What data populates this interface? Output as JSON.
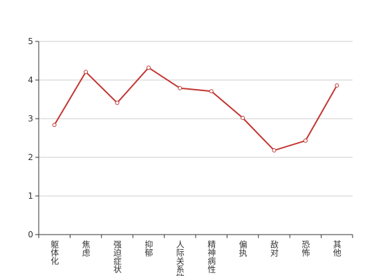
{
  "chart_data": {
    "type": "line",
    "categories": [
      "躯体化",
      "焦虑",
      "强迫症状",
      "抑郁",
      "人际关系敏感",
      "精神病性",
      "偏执",
      "敌对",
      "恐怖",
      "其他"
    ],
    "values": [
      2.84,
      4.21,
      3.41,
      4.32,
      3.79,
      3.71,
      3.02,
      2.18,
      2.43,
      3.86
    ],
    "color": "#c23531",
    "ylim": [
      0,
      5
    ],
    "yticks": [
      0,
      1,
      2,
      3,
      4,
      5
    ],
    "grid": true
  }
}
